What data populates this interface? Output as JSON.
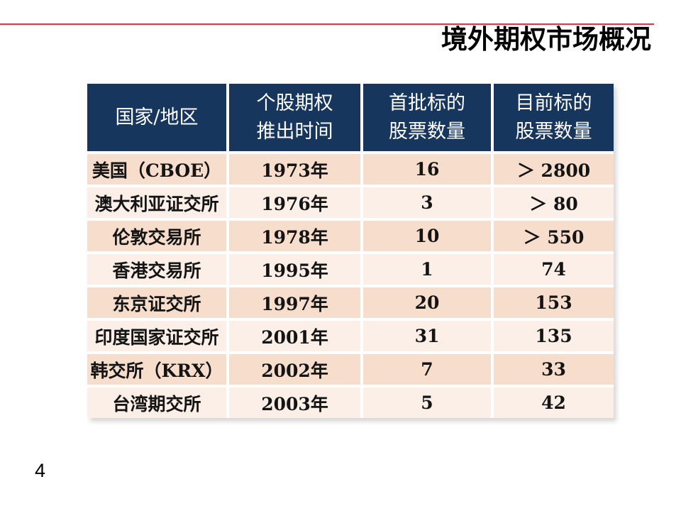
{
  "slide": {
    "title": "境外期权市场概况",
    "page_number": "4"
  },
  "colors": {
    "accent_line": "#E03448",
    "header_bg": "#17365D",
    "header_text": "#FFFFFF",
    "row_odd_bg": "#F6DDCC",
    "row_even_bg": "#FBEFE8",
    "body_text": "#141414"
  },
  "table": {
    "headers": [
      "国家/地区",
      "个股期权\n推出时间",
      "首批标的\n股票数量",
      "目前标的\n股票数量"
    ],
    "rows": [
      [
        "美国（CBOE）",
        "1973年",
        "16",
        "＞ 2800"
      ],
      [
        "澳大利亚证交所",
        "1976年",
        "3",
        "＞ 80"
      ],
      [
        "伦敦交易所",
        "1978年",
        "10",
        "＞ 550"
      ],
      [
        "香港交易所",
        "1995年",
        "1",
        "74"
      ],
      [
        "东京证交所",
        "1997年",
        "20",
        "153"
      ],
      [
        "印度国家证交所",
        "2001年",
        "31",
        "135"
      ],
      [
        "韩交所（KRX）",
        "2002年",
        "7",
        "33"
      ],
      [
        "台湾期交所",
        "2003年",
        "5",
        "42"
      ]
    ]
  }
}
